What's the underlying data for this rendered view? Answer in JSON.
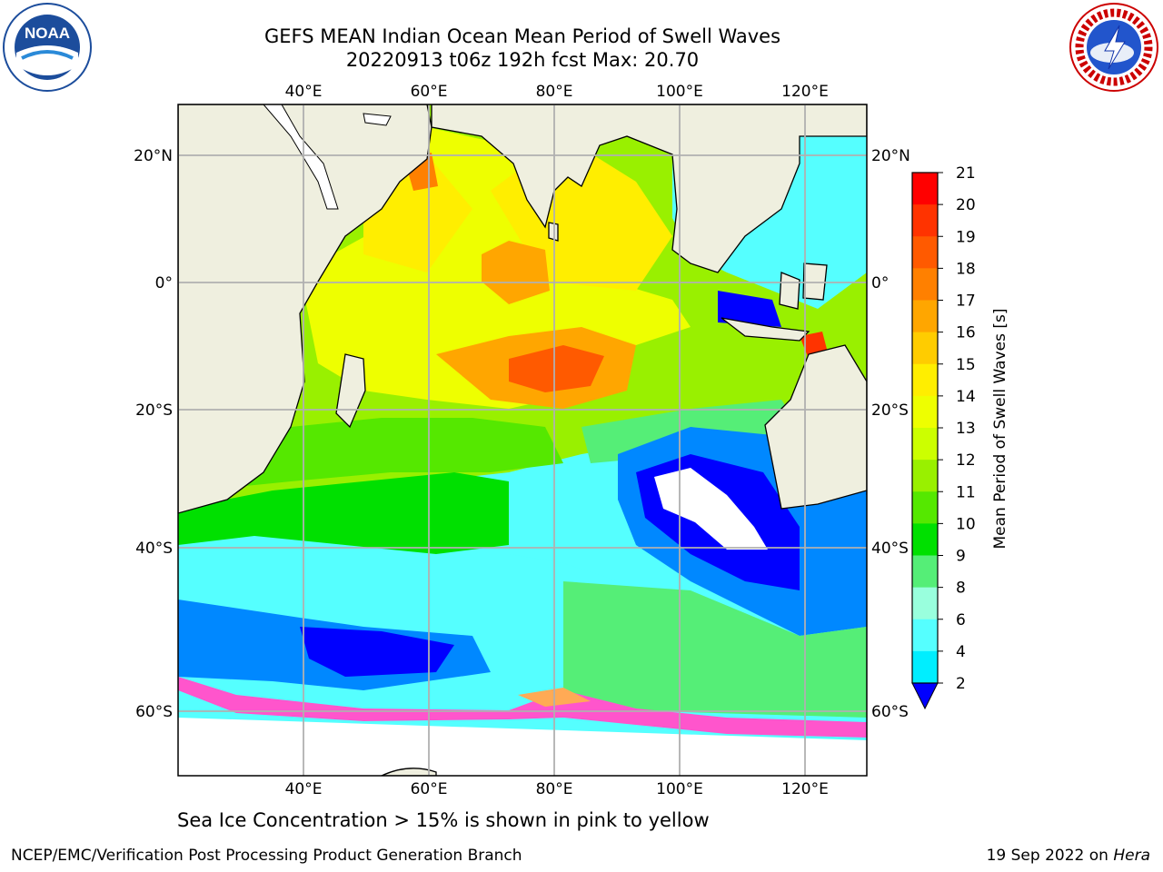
{
  "header": {
    "title_line1": "GEFS MEAN Indian Ocean Mean Period of Swell Waves",
    "title_line2": "20220913 t06z 192h fcst   Max: 20.70"
  },
  "logos": {
    "left": {
      "text": "NOAA",
      "ring_text": "NATIONAL OCEANIC AND ATMOSPHERIC ADMINISTRATION · U.S. DEPARTMENT OF COMMERCE"
    },
    "right": {
      "ring_text": "NATIONAL WEATHER SERVICE"
    }
  },
  "map": {
    "lon_labels": [
      "40°E",
      "60°E",
      "80°E",
      "100°E",
      "120°E"
    ],
    "lat_labels": [
      "20°N",
      "0°",
      "20°S",
      "40°S",
      "60°S"
    ],
    "colors": {
      "land": "#efefdf",
      "grid": "#b0b0b0",
      "coast": "#000000"
    }
  },
  "colorbar": {
    "label": "Mean Period of Swell Waves [s]",
    "ticks": [
      "21",
      "20",
      "19",
      "18",
      "17",
      "16",
      "15",
      "14",
      "13",
      "12",
      "11",
      "10",
      "9",
      "8",
      "6",
      "4",
      "2"
    ],
    "colors": [
      "#ff0000",
      "#ff3300",
      "#ff5a00",
      "#ff8000",
      "#ffa600",
      "#ffcc00",
      "#ffee00",
      "#eeff00",
      "#ccff00",
      "#99f000",
      "#55e800",
      "#00e000",
      "#55ee77",
      "#99ffdd",
      "#55ffff",
      "#00eeff",
      "#0088ff",
      "#0000ff"
    ]
  },
  "footer": {
    "caption": "Sea Ice Concentration > 15% is shown in pink to yellow",
    "credit_left": "NCEP/EMC/Verification Post Processing Product Generation Branch",
    "credit_date": "19 Sep 2022 on ",
    "credit_machine": "Hera"
  }
}
